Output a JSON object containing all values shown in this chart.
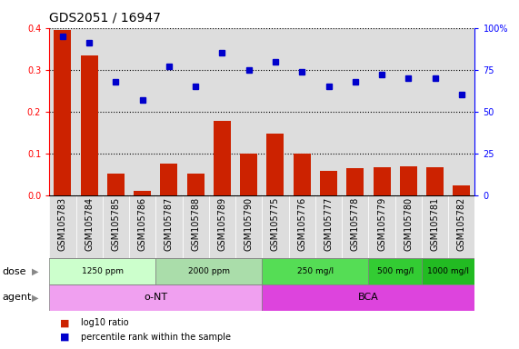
{
  "title": "GDS2051 / 16947",
  "samples": [
    "GSM105783",
    "GSM105784",
    "GSM105785",
    "GSM105786",
    "GSM105787",
    "GSM105788",
    "GSM105789",
    "GSM105790",
    "GSM105775",
    "GSM105776",
    "GSM105777",
    "GSM105778",
    "GSM105779",
    "GSM105780",
    "GSM105781",
    "GSM105782"
  ],
  "log10_ratio": [
    0.395,
    0.335,
    0.053,
    0.012,
    0.075,
    0.053,
    0.178,
    0.1,
    0.148,
    0.1,
    0.058,
    0.065,
    0.068,
    0.07,
    0.068,
    0.025
  ],
  "percentile_rank": [
    95,
    91,
    68,
    57,
    77,
    65,
    85,
    75,
    80,
    74,
    65,
    68,
    72,
    70,
    70,
    60
  ],
  "bar_color": "#cc2200",
  "dot_color": "#0000cc",
  "ylim_left": [
    0,
    0.4
  ],
  "ylim_right": [
    0,
    100
  ],
  "yticks_left": [
    0,
    0.1,
    0.2,
    0.3,
    0.4
  ],
  "yticks_right": [
    0,
    25,
    50,
    75,
    100
  ],
  "ytick_labels_right": [
    "0",
    "25",
    "50",
    "75",
    "100%"
  ],
  "dose_groups": [
    {
      "label": "1250 ppm",
      "start": 0,
      "end": 4,
      "color": "#ccffcc"
    },
    {
      "label": "2000 ppm",
      "start": 4,
      "end": 8,
      "color": "#aaddaa"
    },
    {
      "label": "250 mg/l",
      "start": 8,
      "end": 12,
      "color": "#55dd55"
    },
    {
      "label": "500 mg/l",
      "start": 12,
      "end": 14,
      "color": "#33cc33"
    },
    {
      "label": "1000 mg/l",
      "start": 14,
      "end": 16,
      "color": "#22bb22"
    }
  ],
  "agent_groups": [
    {
      "label": "o-NT",
      "start": 0,
      "end": 8,
      "color": "#f0a0f0"
    },
    {
      "label": "BCA",
      "start": 8,
      "end": 16,
      "color": "#dd44dd"
    }
  ],
  "dose_label": "dose",
  "agent_label": "agent",
  "legend_bar_label": "log10 ratio",
  "legend_dot_label": "percentile rank within the sample",
  "background_color": "#ffffff",
  "col_bg_color": "#dddddd",
  "grid_color": "#000000",
  "title_fontsize": 10,
  "tick_fontsize": 7,
  "label_fontsize": 8,
  "row_label_fontsize": 8
}
